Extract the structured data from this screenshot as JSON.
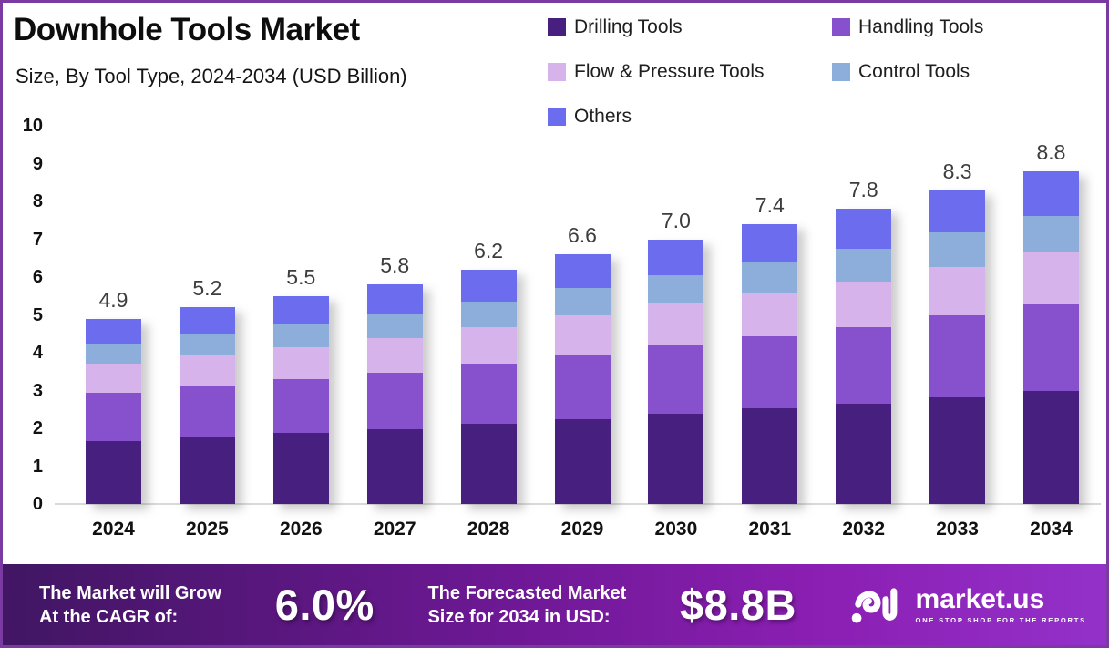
{
  "header": {
    "title": "Downhole Tools Market",
    "subtitle": "Size, By Tool Type, 2024-2034 (USD Billion)"
  },
  "legend": {
    "items": [
      {
        "label": "Drilling Tools",
        "color": "#471f7e"
      },
      {
        "label": "Handling Tools",
        "color": "#8750cc"
      },
      {
        "label": "Flow & Pressure Tools",
        "color": "#d6b3eb"
      },
      {
        "label": "Control Tools",
        "color": "#8dadda"
      },
      {
        "label": "Others",
        "color": "#6b6cee"
      }
    ]
  },
  "chart_data": {
    "type": "bar",
    "stacked": true,
    "title": "Downhole Tools Market Size, By Tool Type, 2024-2034",
    "units": "USD Billion",
    "grid": false,
    "legend_position": "top-right",
    "ylim": [
      0,
      10
    ],
    "yticks": [
      0,
      1,
      2,
      3,
      4,
      5,
      6,
      7,
      8,
      9,
      10
    ],
    "categories": [
      "2024",
      "2025",
      "2026",
      "2027",
      "2028",
      "2029",
      "2030",
      "2031",
      "2032",
      "2033",
      "2034"
    ],
    "totals": [
      4.9,
      5.2,
      5.5,
      5.8,
      6.2,
      6.6,
      7.0,
      7.4,
      7.8,
      8.3,
      8.8
    ],
    "series": [
      {
        "name": "Drilling Tools",
        "color": "#471f7e",
        "values": [
          1.67,
          1.77,
          1.87,
          1.97,
          2.11,
          2.24,
          2.38,
          2.52,
          2.65,
          2.82,
          2.99
        ]
      },
      {
        "name": "Handling Tools",
        "color": "#8750cc",
        "values": [
          1.27,
          1.35,
          1.43,
          1.51,
          1.61,
          1.72,
          1.82,
          1.92,
          2.03,
          2.16,
          2.29
        ]
      },
      {
        "name": "Flow & Pressure Tools",
        "color": "#d6b3eb",
        "values": [
          0.76,
          0.81,
          0.85,
          0.9,
          0.96,
          1.02,
          1.09,
          1.15,
          1.21,
          1.29,
          1.36
        ]
      },
      {
        "name": "Control Tools",
        "color": "#8dadda",
        "values": [
          0.54,
          0.57,
          0.61,
          0.64,
          0.68,
          0.73,
          0.77,
          0.81,
          0.86,
          0.91,
          0.97
        ]
      },
      {
        "name": "Others",
        "color": "#6b6cee",
        "values": [
          0.66,
          0.7,
          0.74,
          0.78,
          0.84,
          0.89,
          0.94,
          1.0,
          1.05,
          1.12,
          1.19
        ]
      }
    ]
  },
  "footer": {
    "cagr_line1": "The Market will Grow",
    "cagr_line2": "At the CAGR of:",
    "cagr_value": "6.0%",
    "forecast_line1": "The Forecasted Market",
    "forecast_line2": "Size for 2034 in USD:",
    "forecast_value": "$8.8B",
    "brand": "market.us",
    "tagline": "ONE STOP SHOP FOR THE REPORTS"
  }
}
